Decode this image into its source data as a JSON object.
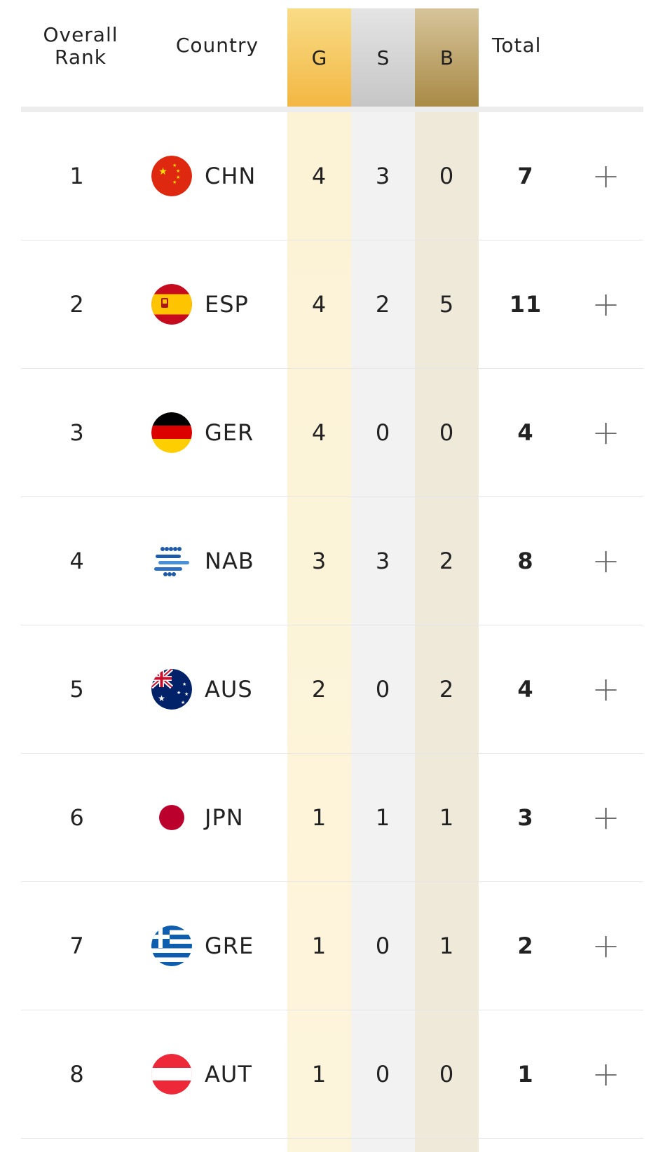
{
  "header": {
    "rank_label": "Overall Rank",
    "country_label": "Country",
    "gold_label": "G",
    "silver_label": "S",
    "bronze_label": "B",
    "total_label": "Total"
  },
  "colors": {
    "gold": "#f3b743",
    "silver": "#c6c6c6",
    "bronze": "#a98a46"
  },
  "rows": [
    {
      "rank": "1",
      "code": "CHN",
      "flag": "china-flag-icon",
      "gold": "4",
      "silver": "3",
      "bronze": "0",
      "total": "7",
      "expand": "+"
    },
    {
      "rank": "2",
      "code": "ESP",
      "flag": "spain-flag-icon",
      "gold": "4",
      "silver": "2",
      "bronze": "5",
      "total": "11",
      "expand": "+"
    },
    {
      "rank": "3",
      "code": "GER",
      "flag": "germany-flag-icon",
      "gold": "4",
      "silver": "0",
      "bronze": "0",
      "total": "4",
      "expand": "+"
    },
    {
      "rank": "4",
      "code": "NAB",
      "flag": "neutral-athletes-icon",
      "gold": "3",
      "silver": "3",
      "bronze": "2",
      "total": "8",
      "expand": "+"
    },
    {
      "rank": "5",
      "code": "AUS",
      "flag": "australia-flag-icon",
      "gold": "2",
      "silver": "0",
      "bronze": "2",
      "total": "4",
      "expand": "+"
    },
    {
      "rank": "6",
      "code": "JPN",
      "flag": "japan-flag-icon",
      "gold": "1",
      "silver": "1",
      "bronze": "1",
      "total": "3",
      "expand": "+"
    },
    {
      "rank": "7",
      "code": "GRE",
      "flag": "greece-flag-icon",
      "gold": "1",
      "silver": "0",
      "bronze": "1",
      "total": "2",
      "expand": "+"
    },
    {
      "rank": "8",
      "code": "AUT",
      "flag": "austria-flag-icon",
      "gold": "1",
      "silver": "0",
      "bronze": "0",
      "total": "1",
      "expand": "+"
    }
  ]
}
